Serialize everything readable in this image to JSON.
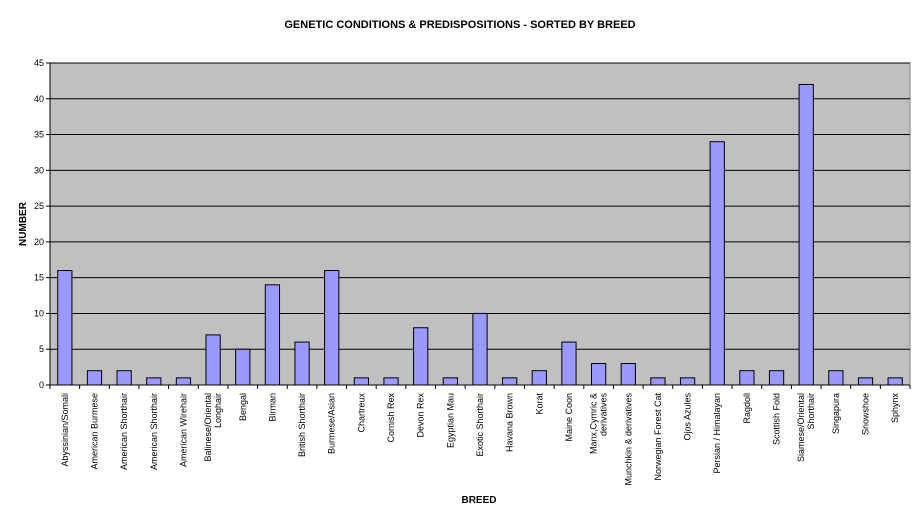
{
  "chart_data": {
    "type": "bar",
    "title": "GENETIC CONDITIONS & PREDISPOSITIONS - SORTED BY BREED",
    "xlabel": "BREED",
    "ylabel": "NUMBER",
    "ylim": [
      0,
      45
    ],
    "yticks": [
      0,
      5,
      10,
      15,
      20,
      25,
      30,
      35,
      40,
      45
    ],
    "grid": true,
    "legend": "none",
    "colors": {
      "plot_bg": "#c0c0c0",
      "bar_fill": "#9999ff",
      "bar_stroke": "#000000",
      "grid": "#000000"
    },
    "categories": [
      "Abyssinian/Somali",
      "American Burmese",
      "American Shorthair",
      "American Shorthair",
      "American Wirehair",
      "Balinese/Oriental Longhair",
      "Bengal",
      "Birman",
      "British Shorthair",
      "Burmese/Asian",
      "Chartreux",
      "Cornish Rex",
      "Devon Rex",
      "Egyptian Mau",
      "Exotic Shorthair",
      "Havana Brown",
      "Korat",
      "Maine Coon",
      "Manx,Cymric & derivatives",
      "Munchkin & derivatives",
      "Norwegian Forest Cat",
      "Ojos Azules",
      "Persian / Himalayan",
      "Ragdoll",
      "Scottish Fold",
      "Siamese/Oriental Shorthair",
      "Singapura",
      "Snowshoe",
      "Sphynx"
    ],
    "values": [
      16,
      2,
      2,
      1,
      1,
      7,
      5,
      14,
      6,
      16,
      1,
      1,
      8,
      1,
      10,
      1,
      2,
      6,
      3,
      3,
      1,
      1,
      34,
      2,
      2,
      42,
      2,
      1,
      1
    ]
  }
}
